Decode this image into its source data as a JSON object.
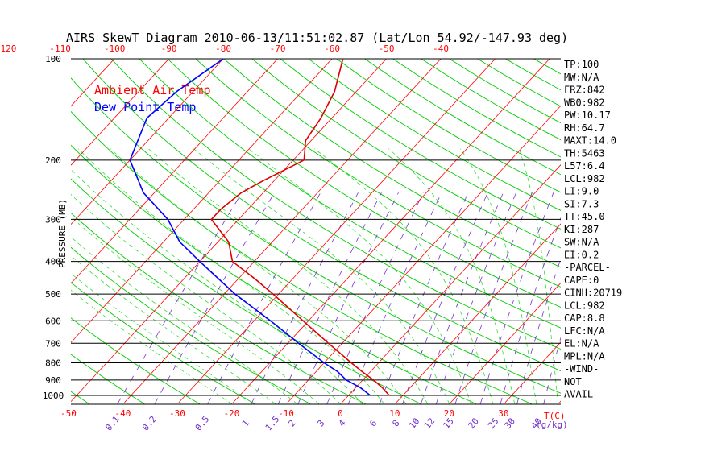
{
  "title": "AIRS SkewT Diagram 2010-06-13/11:51:02.87 (Lat/Lon 54.92/-147.93 deg)",
  "legend": [
    {
      "label": "Ambient Air Temp",
      "color": "#ff0000"
    },
    {
      "label": "Dew Point Temp",
      "color": "#0000ff"
    }
  ],
  "colors": {
    "isotherm": "#ff0000",
    "dry_adiabat": "#00cc00",
    "moist_adiabat": "#33dd33",
    "mixing_ratio": "#7733cc",
    "isobar": "#000000",
    "temperature": "#dd0000",
    "dewpoint": "#0000ff",
    "tick_top": "#ff0000",
    "tick_bottom": "#ff0000",
    "tick_mix": "#7733cc"
  },
  "side_panel": [
    "TP:100",
    "MW:N/A",
    "FRZ:842",
    "WB0:982",
    "PW:10.17",
    "RH:64.7",
    "MAXT:14.0",
    "TH:5463",
    "L57:6.4",
    "LCL:982",
    "LI:9.0",
    "SI:7.3",
    "TT:45.0",
    "KI:287",
    "SW:N/A",
    "EI:0.2",
    "-PARCEL-",
    "CAPE:0",
    "CINH:20719",
    "LCL:982",
    "CAP:8.8",
    "LFC:N/A",
    "EL:N/A",
    "MPL:N/A",
    "-WIND-",
    "NOT",
    "AVAIL"
  ],
  "chart_data": {
    "type": "line",
    "title": "AIRS SkewT Diagram 2010-06-13/11:51:02.87 (Lat/Lon 54.92/-147.93 deg)",
    "ylabel": "PRESSURE (MB)",
    "xlabel": "T(C)",
    "y_scale": "log",
    "ylim": [
      1050,
      100
    ],
    "pressure_ticks": [
      "100",
      "200",
      "300",
      "400",
      "500",
      "600",
      "700",
      "800",
      "900",
      "1000"
    ],
    "pressure_levels": [
      100,
      200,
      300,
      400,
      500,
      600,
      700,
      800,
      900,
      1000
    ],
    "bottom_temp_ticks": [
      "-50",
      "-40",
      "-30",
      "-20",
      "-10",
      "0",
      "10",
      "20",
      "30"
    ],
    "bottom_temp_values": [
      -50,
      -40,
      -30,
      -20,
      -10,
      0,
      10,
      20,
      30
    ],
    "top_temp_ticks": [
      "-120",
      "-110",
      "-100",
      "-90",
      "-80",
      "-70",
      "-60",
      "-50",
      "-40"
    ],
    "top_temp_values": [
      -120,
      -110,
      -100,
      -90,
      -80,
      -70,
      -60,
      -50,
      -40
    ],
    "mixing_ratio_ticks": [
      "0.1",
      "0.2",
      "0.5",
      "1",
      "1.5",
      "2",
      "3",
      "4",
      "6",
      "8",
      "10",
      "12",
      "15",
      "20",
      "25",
      "30",
      "40"
    ],
    "mixing_ratio_values": [
      0.1,
      0.2,
      0.5,
      1,
      1.5,
      2,
      3,
      4,
      6,
      8,
      10,
      12,
      15,
      20,
      25,
      30,
      40
    ],
    "mixing_ratio_unit": "(g/kg)",
    "series": [
      {
        "name": "Ambient Air Temp",
        "color": "#dd0000",
        "points": [
          [
            1000,
            7.5
          ],
          [
            950,
            5
          ],
          [
            900,
            2
          ],
          [
            850,
            -1.5
          ],
          [
            800,
            -5
          ],
          [
            700,
            -12.5
          ],
          [
            600,
            -21
          ],
          [
            500,
            -31
          ],
          [
            450,
            -37
          ],
          [
            400,
            -44
          ],
          [
            350,
            -48
          ],
          [
            300,
            -55
          ],
          [
            280,
            -55
          ],
          [
            250,
            -54
          ],
          [
            230,
            -52
          ],
          [
            200,
            -48
          ],
          [
            175,
            -51
          ],
          [
            150,
            -52
          ],
          [
            125,
            -54
          ],
          [
            100,
            -58
          ]
        ]
      },
      {
        "name": "Dew Point Temp",
        "color": "#0000ff",
        "points": [
          [
            1000,
            4
          ],
          [
            950,
            1
          ],
          [
            900,
            -3
          ],
          [
            850,
            -6
          ],
          [
            800,
            -10
          ],
          [
            700,
            -18
          ],
          [
            600,
            -27
          ],
          [
            500,
            -38
          ],
          [
            400,
            -50
          ],
          [
            350,
            -57
          ],
          [
            300,
            -63
          ],
          [
            250,
            -72
          ],
          [
            200,
            -80
          ],
          [
            150,
            -84
          ],
          [
            125,
            -83
          ],
          [
            100,
            -80
          ]
        ]
      }
    ]
  }
}
